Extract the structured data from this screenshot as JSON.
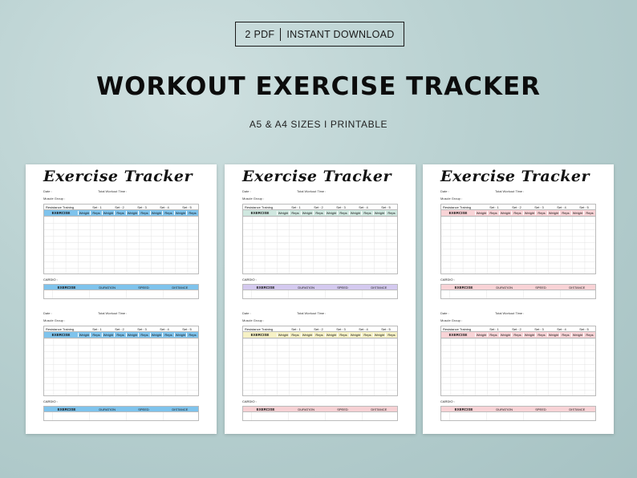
{
  "badge": {
    "left": "2 PDF",
    "right": "INSTANT DOWNLOAD"
  },
  "headline": "WORKOUT EXERCISE TRACKER",
  "subheadline": "A5 & A4  SIZES   I   PRINTABLE",
  "tracker": {
    "title": "Exercise Tracker",
    "date_label": "Date :",
    "time_label": "Total Workout Time :",
    "muscle_label": "Muscle Group :",
    "resistance_label": "Resistance Training",
    "sets": [
      "Set : 1",
      "Set : 2",
      "Set : 3",
      "Set : 4",
      "Set : 5"
    ],
    "exercise_header": "EXERCISE",
    "weight_label": "Weight",
    "reps_label": "Reps",
    "cardio_label": "CARDIO :",
    "cardio_cols": [
      "DURATION",
      "SPEED",
      "DISTANCE"
    ]
  },
  "pages": [
    {
      "name": "blue",
      "colors": {
        "top_hdr": "#7fc3ec",
        "top_cardio": "#7fc3ec",
        "bot_hdr": "#7fc3ec",
        "bot_cardio": "#7fc3ec"
      }
    },
    {
      "name": "multi",
      "colors": {
        "top_hdr": "#cfe7df",
        "top_cardio": "#d4c9ef",
        "bot_hdr": "#f6f1c5",
        "bot_cardio": "#f6d1d4"
      }
    },
    {
      "name": "pink",
      "colors": {
        "top_hdr": "#f8d3d6",
        "top_cardio": "#f8d3d6",
        "bot_hdr": "#f8d3d6",
        "bot_cardio": "#f8d3d6"
      }
    }
  ]
}
